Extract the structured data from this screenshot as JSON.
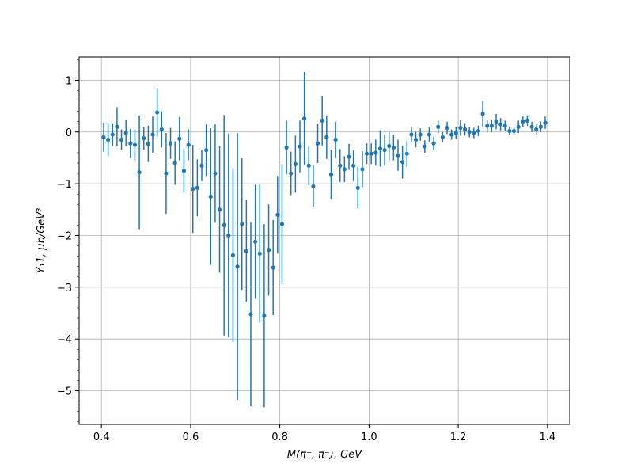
{
  "chart_data": {
    "type": "scatter",
    "title": "",
    "xlabel": "M(π⁺, π⁻), GeV",
    "ylabel": "Y₁1, μb/GeV³",
    "xlim": [
      0.35,
      1.45
    ],
    "ylim": [
      -5.65,
      1.45
    ],
    "xticks": [
      0.4,
      0.6,
      0.8,
      1.0,
      1.2,
      1.4
    ],
    "xtick_labels": [
      "0.4",
      "0.6",
      "0.8",
      "1.0",
      "1.2",
      "1.4"
    ],
    "yticks": [
      1,
      0,
      -1,
      -2,
      -3,
      -4,
      -5
    ],
    "ytick_labels": [
      "1",
      "0",
      "−1",
      "−2",
      "−3",
      "−4",
      "−5"
    ],
    "grid": true,
    "legend": "none",
    "marker_color": "#1f77b4",
    "series": [
      {
        "x": [
          0.405,
          0.415,
          0.425,
          0.435,
          0.445,
          0.455,
          0.465,
          0.475,
          0.485,
          0.495,
          0.505,
          0.515,
          0.525,
          0.535,
          0.545,
          0.555,
          0.565,
          0.575,
          0.585,
          0.595,
          0.605,
          0.615,
          0.625,
          0.635,
          0.645,
          0.655,
          0.665,
          0.675,
          0.685,
          0.695,
          0.705,
          0.715,
          0.725,
          0.735,
          0.745,
          0.755,
          0.765,
          0.775,
          0.785,
          0.795,
          0.805,
          0.815,
          0.825,
          0.835,
          0.845,
          0.855,
          0.865,
          0.875,
          0.885,
          0.895,
          0.905,
          0.915,
          0.925,
          0.935,
          0.945,
          0.955,
          0.965,
          0.975,
          0.985,
          0.995,
          1.005,
          1.015,
          1.025,
          1.035,
          1.045,
          1.055,
          1.065,
          1.075,
          1.085,
          1.095,
          1.105,
          1.115,
          1.125,
          1.135,
          1.145,
          1.155,
          1.165,
          1.175,
          1.185,
          1.195,
          1.205,
          1.215,
          1.225,
          1.235,
          1.245,
          1.255,
          1.265,
          1.275,
          1.285,
          1.295,
          1.305,
          1.315,
          1.325,
          1.335,
          1.345,
          1.355,
          1.365,
          1.375,
          1.385,
          1.395
        ],
        "y": [
          -0.1,
          -0.15,
          -0.05,
          0.1,
          -0.15,
          -0.02,
          -0.22,
          -0.25,
          -0.78,
          -0.12,
          -0.23,
          -0.05,
          0.38,
          0.05,
          -0.8,
          -0.22,
          -0.6,
          -0.13,
          -0.75,
          -0.25,
          -1.1,
          -1.08,
          -0.65,
          -0.35,
          -1.25,
          -0.8,
          -1.5,
          -1.8,
          -2.0,
          -2.38,
          -2.6,
          -1.78,
          -2.3,
          -3.52,
          -2.12,
          -2.35,
          -3.55,
          -2.28,
          -2.62,
          -1.6,
          -1.78,
          -0.3,
          -0.8,
          -0.62,
          -0.28,
          0.26,
          -0.65,
          -1.05,
          -0.22,
          0.22,
          -0.1,
          -0.82,
          -0.15,
          -0.65,
          -0.72,
          -0.48,
          -0.65,
          -1.08,
          -0.72,
          -0.42,
          -0.42,
          -0.4,
          -0.32,
          -0.35,
          -0.27,
          -0.3,
          -0.45,
          -0.58,
          -0.42,
          -0.05,
          -0.15,
          -0.05,
          -0.28,
          -0.05,
          -0.22,
          0.1,
          -0.1,
          0.08,
          -0.05,
          -0.02,
          0.08,
          0.05,
          0.0,
          -0.02,
          0.02,
          0.35,
          0.12,
          0.12,
          0.2,
          0.15,
          0.12,
          0.02,
          0.02,
          0.1,
          0.2,
          0.22,
          0.1,
          0.05,
          0.1,
          0.18
        ],
        "yerr": [
          0.28,
          0.32,
          0.22,
          0.38,
          0.2,
          0.25,
          0.28,
          0.3,
          1.1,
          0.22,
          0.35,
          0.35,
          0.47,
          0.35,
          0.78,
          0.3,
          0.42,
          0.42,
          0.42,
          0.3,
          0.85,
          0.55,
          0.3,
          0.5,
          1.32,
          0.95,
          1.22,
          2.13,
          1.97,
          1.68,
          2.58,
          1.27,
          0.98,
          1.78,
          1.1,
          1.33,
          1.77,
          0.88,
          0.92,
          0.75,
          1.16,
          0.52,
          0.42,
          0.55,
          0.5,
          0.9,
          0.38,
          0.4,
          0.38,
          0.48,
          0.42,
          0.48,
          0.35,
          0.32,
          0.25,
          0.25,
          0.3,
          0.4,
          0.35,
          0.2,
          0.2,
          0.25,
          0.35,
          0.3,
          0.28,
          0.25,
          0.3,
          0.32,
          0.25,
          0.15,
          0.15,
          0.12,
          0.12,
          0.15,
          0.13,
          0.12,
          0.1,
          0.12,
          0.1,
          0.12,
          0.15,
          0.12,
          0.1,
          0.1,
          0.1,
          0.25,
          0.12,
          0.12,
          0.15,
          0.12,
          0.1,
          0.08,
          0.08,
          0.12,
          0.1,
          0.1,
          0.1,
          0.1,
          0.1,
          0.12
        ]
      }
    ]
  }
}
